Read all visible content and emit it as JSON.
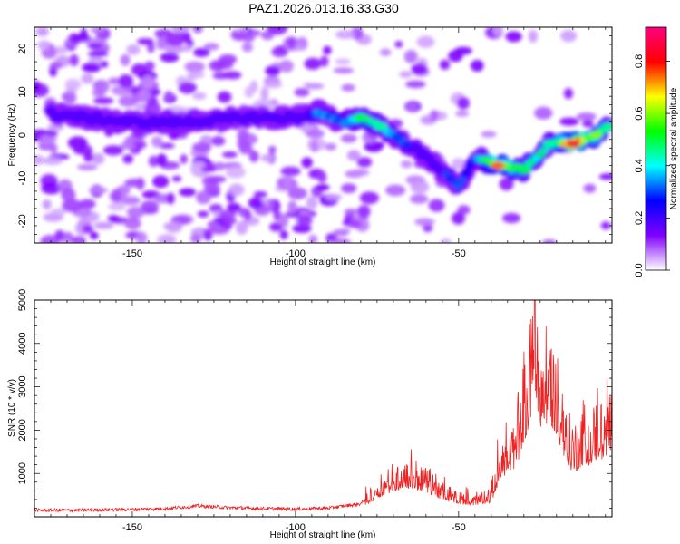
{
  "title": "PAZ1.2026.013.16.33.G30",
  "chart_data": [
    {
      "type": "heatmap",
      "name": "spectrogram",
      "xlabel": "Height of straight line (km)",
      "ylabel": "Frequency (Hz)",
      "xlim": [
        -180,
        -3
      ],
      "ylim": [
        -25,
        25
      ],
      "xticks": [
        -150,
        -100,
        -50
      ],
      "yticks": [
        -20,
        -10,
        0,
        10,
        20
      ],
      "colorbar": {
        "label": "Normalized spectral amplitude",
        "range": [
          0.0,
          0.93
        ],
        "ticks": [
          "0.0",
          "0.2",
          "0.4",
          "0.6",
          "0.8"
        ],
        "tick_values": [
          0.0,
          0.2,
          0.4,
          0.6,
          0.8
        ],
        "colors": [
          "#ffffff",
          "#8000ff",
          "#0000ff",
          "#00ffff",
          "#00ff00",
          "#ffff00",
          "#ff0000",
          "#ff0080"
        ]
      },
      "ridge": [
        {
          "x": -175,
          "y": 5,
          "amp": 0.15
        },
        {
          "x": -165,
          "y": 4,
          "amp": 0.18
        },
        {
          "x": -150,
          "y": 3,
          "amp": 0.18
        },
        {
          "x": -135,
          "y": 3,
          "amp": 0.2
        },
        {
          "x": -115,
          "y": 4,
          "amp": 0.15
        },
        {
          "x": -100,
          "y": 4,
          "amp": 0.2
        },
        {
          "x": -93,
          "y": 5,
          "amp": 0.35
        },
        {
          "x": -85,
          "y": 3,
          "amp": 0.35
        },
        {
          "x": -80,
          "y": 4,
          "amp": 0.5
        },
        {
          "x": -74,
          "y": 2,
          "amp": 0.45
        },
        {
          "x": -68,
          "y": -1,
          "amp": 0.35
        },
        {
          "x": -62,
          "y": -4,
          "amp": 0.25
        },
        {
          "x": -55,
          "y": -8,
          "amp": 0.3
        },
        {
          "x": -50,
          "y": -12,
          "amp": 0.3
        },
        {
          "x": -45,
          "y": -5,
          "amp": 0.3
        },
        {
          "x": -38,
          "y": -7,
          "amp": 0.75
        },
        {
          "x": -30,
          "y": -8,
          "amp": 0.5
        },
        {
          "x": -22,
          "y": -2,
          "amp": 0.45
        },
        {
          "x": -15,
          "y": -2,
          "amp": 0.85
        },
        {
          "x": -8,
          "y": 0,
          "amp": 0.6
        },
        {
          "x": -4,
          "y": 2,
          "amp": 0.45
        }
      ]
    },
    {
      "type": "line",
      "name": "snr",
      "xlabel": "Height of straight line (km)",
      "ylabel": "SNR (10 * v/v)",
      "xlim": [
        -180,
        -3
      ],
      "ylim": [
        0,
        5000
      ],
      "xticks": [
        -150,
        -100,
        -50
      ],
      "yticks": [
        1000,
        2000,
        3000,
        4000,
        5000
      ],
      "series": [
        {
          "name": "SNR",
          "color": "#ee2222",
          "x": [
            -180,
            -170,
            -160,
            -150,
            -140,
            -130,
            -120,
            -110,
            -100,
            -90,
            -80,
            -75,
            -70,
            -65,
            -60,
            -55,
            -50,
            -45,
            -40,
            -37,
            -33,
            -30,
            -28,
            -27,
            -25,
            -22,
            -20,
            -18,
            -15,
            -12,
            -10,
            -8,
            -5,
            -3
          ],
          "y": [
            150,
            150,
            160,
            170,
            190,
            250,
            210,
            190,
            180,
            200,
            300,
            650,
            900,
            1000,
            850,
            600,
            450,
            400,
            500,
            1400,
            1600,
            2500,
            3200,
            5000,
            3000,
            3300,
            2800,
            2200,
            1500,
            1800,
            1800,
            1900,
            2100,
            2000
          ]
        }
      ]
    }
  ]
}
